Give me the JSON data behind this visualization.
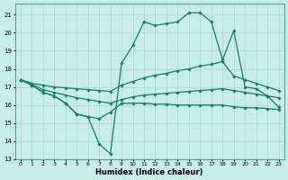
{
  "xlabel": "Humidex (Indice chaleur)",
  "xlim": [
    -0.5,
    23.5
  ],
  "ylim": [
    13,
    21.6
  ],
  "yticks": [
    13,
    14,
    15,
    16,
    17,
    18,
    19,
    20,
    21
  ],
  "xticks": [
    0,
    1,
    2,
    3,
    4,
    5,
    6,
    7,
    8,
    9,
    10,
    11,
    12,
    13,
    14,
    15,
    16,
    17,
    18,
    19,
    20,
    21,
    22,
    23
  ],
  "bg_color": "#c8ece6",
  "grid_color": "#a8d8d0",
  "line_color": "#1a7a6e",
  "lines": [
    {
      "x": [
        0,
        1,
        2,
        3,
        4,
        5,
        6,
        7,
        8,
        9,
        10,
        11,
        12,
        13,
        14,
        15,
        16,
        17,
        18,
        19,
        20,
        21,
        22,
        23
      ],
      "y": [
        17.4,
        17.1,
        16.7,
        16.5,
        16.1,
        15.5,
        15.35,
        13.85,
        13.3,
        18.3,
        19.3,
        20.6,
        20.4,
        20.5,
        20.6,
        21.1,
        21.1,
        20.6,
        18.5,
        20.1,
        17.0,
        16.9,
        16.5,
        15.9
      ]
    },
    {
      "x": [
        0,
        1,
        2,
        3,
        4,
        5,
        6,
        7,
        8,
        9,
        10,
        11,
        12,
        13,
        14,
        15,
        16,
        17,
        18,
        19,
        20,
        21,
        22,
        23
      ],
      "y": [
        17.4,
        17.2,
        17.1,
        17.0,
        16.95,
        16.9,
        16.85,
        16.8,
        16.75,
        17.1,
        17.3,
        17.5,
        17.65,
        17.75,
        17.9,
        18.0,
        18.15,
        18.25,
        18.4,
        17.6,
        17.4,
        17.2,
        17.0,
        16.8
      ]
    },
    {
      "x": [
        0,
        1,
        2,
        3,
        4,
        5,
        6,
        7,
        8,
        9,
        10,
        11,
        12,
        13,
        14,
        15,
        16,
        17,
        18,
        19,
        20,
        21,
        22,
        23
      ],
      "y": [
        17.4,
        17.15,
        16.85,
        16.7,
        16.55,
        16.4,
        16.3,
        16.2,
        16.1,
        16.3,
        16.45,
        16.55,
        16.6,
        16.65,
        16.7,
        16.75,
        16.8,
        16.85,
        16.9,
        16.8,
        16.7,
        16.6,
        16.5,
        16.4
      ]
    },
    {
      "x": [
        0,
        1,
        2,
        3,
        4,
        5,
        6,
        7,
        8,
        9,
        10,
        11,
        12,
        13,
        14,
        15,
        16,
        17,
        18,
        19,
        20,
        21,
        22,
        23
      ],
      "y": [
        17.4,
        17.1,
        16.7,
        16.5,
        16.1,
        15.5,
        15.35,
        15.25,
        15.6,
        16.1,
        16.1,
        16.1,
        16.05,
        16.05,
        16.0,
        16.0,
        16.0,
        16.0,
        16.0,
        15.9,
        15.85,
        15.85,
        15.8,
        15.75
      ]
    }
  ]
}
